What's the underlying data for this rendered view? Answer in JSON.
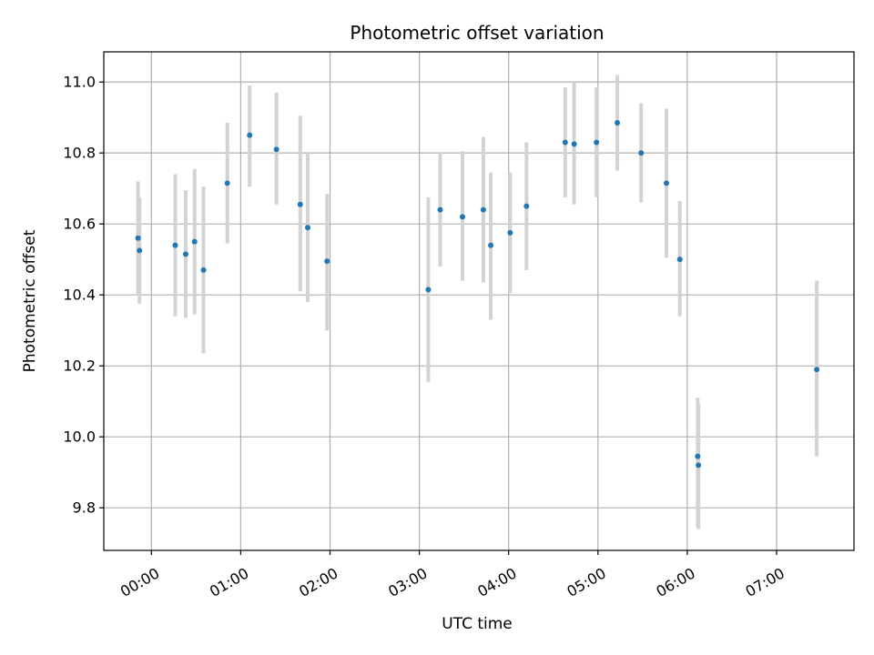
{
  "chart_data": {
    "type": "scatter",
    "title": "Photometric offset variation",
    "xlabel": "UTC time",
    "ylabel": "Photometric offset",
    "x_unit": "minutes",
    "xlim": [
      -32,
      472
    ],
    "ylim": [
      9.68,
      11.085
    ],
    "grid": true,
    "legend": "none",
    "x_ticks": [
      {
        "value": 0,
        "label": "00:00"
      },
      {
        "value": 60,
        "label": "01:00"
      },
      {
        "value": 120,
        "label": "02:00"
      },
      {
        "value": 180,
        "label": "03:00"
      },
      {
        "value": 240,
        "label": "04:00"
      },
      {
        "value": 300,
        "label": "05:00"
      },
      {
        "value": 360,
        "label": "06:00"
      },
      {
        "value": 420,
        "label": "07:00"
      }
    ],
    "y_ticks": [
      {
        "value": 9.8,
        "label": "9.8"
      },
      {
        "value": 10.0,
        "label": "10.0"
      },
      {
        "value": 10.2,
        "label": "10.2"
      },
      {
        "value": 10.4,
        "label": "10.4"
      },
      {
        "value": 10.6,
        "label": "10.6"
      },
      {
        "value": 10.8,
        "label": "10.8"
      },
      {
        "value": 11.0,
        "label": "11.0"
      }
    ],
    "colors": {
      "point": "#1f77b4",
      "errorbar": "#d3d3d3",
      "grid": "#b0b0b0"
    },
    "points": [
      {
        "x": -9,
        "y": 10.56,
        "err_low": 10.4,
        "err_high": 10.72
      },
      {
        "x": -8,
        "y": 10.525,
        "err_low": 10.375,
        "err_high": 10.675
      },
      {
        "x": 16,
        "y": 10.54,
        "err_low": 10.34,
        "err_high": 10.74
      },
      {
        "x": 23,
        "y": 10.515,
        "err_low": 10.335,
        "err_high": 10.695
      },
      {
        "x": 29,
        "y": 10.55,
        "err_low": 10.345,
        "err_high": 10.755
      },
      {
        "x": 35,
        "y": 10.47,
        "err_low": 10.235,
        "err_high": 10.705
      },
      {
        "x": 51,
        "y": 10.715,
        "err_low": 10.545,
        "err_high": 10.885
      },
      {
        "x": 66,
        "y": 10.85,
        "err_low": 10.705,
        "err_high": 10.99
      },
      {
        "x": 84,
        "y": 10.81,
        "err_low": 10.655,
        "err_high": 10.97
      },
      {
        "x": 100,
        "y": 10.655,
        "err_low": 10.41,
        "err_high": 10.905
      },
      {
        "x": 105,
        "y": 10.59,
        "err_low": 10.38,
        "err_high": 10.8
      },
      {
        "x": 118,
        "y": 10.495,
        "err_low": 10.3,
        "err_high": 10.685
      },
      {
        "x": 186,
        "y": 10.415,
        "err_low": 10.155,
        "err_high": 10.675
      },
      {
        "x": 194,
        "y": 10.64,
        "err_low": 10.48,
        "err_high": 10.8
      },
      {
        "x": 209,
        "y": 10.62,
        "err_low": 10.44,
        "err_high": 10.805
      },
      {
        "x": 223,
        "y": 10.64,
        "err_low": 10.435,
        "err_high": 10.845
      },
      {
        "x": 228,
        "y": 10.54,
        "err_low": 10.33,
        "err_high": 10.745
      },
      {
        "x": 241,
        "y": 10.575,
        "err_low": 10.405,
        "err_high": 10.745
      },
      {
        "x": 252,
        "y": 10.65,
        "err_low": 10.47,
        "err_high": 10.83
      },
      {
        "x": 278,
        "y": 10.83,
        "err_low": 10.675,
        "err_high": 10.985
      },
      {
        "x": 284,
        "y": 10.825,
        "err_low": 10.655,
        "err_high": 11.0
      },
      {
        "x": 299,
        "y": 10.83,
        "err_low": 10.675,
        "err_high": 10.985
      },
      {
        "x": 313,
        "y": 10.885,
        "err_low": 10.75,
        "err_high": 11.02
      },
      {
        "x": 329,
        "y": 10.8,
        "err_low": 10.66,
        "err_high": 10.94
      },
      {
        "x": 346,
        "y": 10.715,
        "err_low": 10.505,
        "err_high": 10.925
      },
      {
        "x": 355,
        "y": 10.5,
        "err_low": 10.34,
        "err_high": 10.665
      },
      {
        "x": 367,
        "y": 9.945,
        "err_low": 9.745,
        "err_high": 10.11
      },
      {
        "x": 367.5,
        "y": 9.92,
        "err_low": 9.74,
        "err_high": 10.095
      },
      {
        "x": 447,
        "y": 10.19,
        "err_low": 9.945,
        "err_high": 10.44
      }
    ]
  }
}
